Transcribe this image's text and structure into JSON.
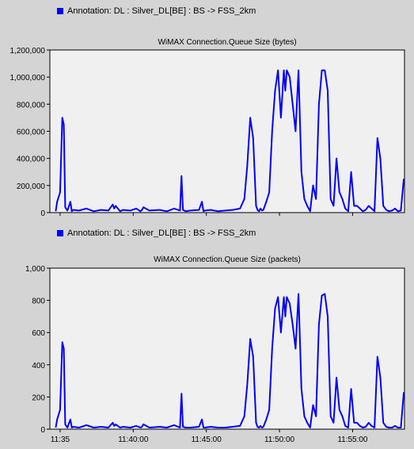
{
  "series_color": "#0000ff",
  "charts_meta": [
    {
      "legend": "Annotation: DL : Silver_DL[BE] : BS -> FSS_2km",
      "title": "WiMAX Connection.Queue Size (bytes)"
    },
    {
      "legend": "Annotation: DL : Silver_DL[BE] : BS -> FSS_2km",
      "title": "WiMAX Connection.Queue Size (packets)"
    }
  ],
  "chart_data": [
    {
      "type": "line",
      "title": "WiMAX Connection.Queue Size (bytes)",
      "xlabel": "",
      "ylabel": "",
      "xlim": [
        0,
        24.25
      ],
      "ylim": [
        0,
        1200000
      ],
      "yticks": [
        0,
        200000,
        400000,
        600000,
        800000,
        1000000,
        1200000
      ],
      "ytick_labels": [
        "0",
        "200,000",
        "400,000",
        "600,000",
        "800,000",
        "1,000,000",
        "1,200,000"
      ],
      "x_units": "minutes after 11:35:00",
      "series": [
        {
          "x": [
            0.4,
            0.5,
            0.7,
            0.85,
            0.95,
            1.05,
            1.2,
            1.4,
            1.5,
            1.6,
            2.0,
            2.5,
            3.0,
            3.5,
            4.0,
            4.3,
            4.4,
            4.5,
            4.8,
            5.0,
            5.5,
            5.9,
            6.2,
            6.3,
            6.4,
            6.8,
            7.5,
            8.0,
            8.5,
            8.9,
            9.0,
            9.1,
            9.3,
            9.6,
            10.2,
            10.4,
            10.5,
            10.6,
            11.0,
            11.5,
            12.0,
            12.5,
            13.0,
            13.3,
            13.5,
            13.7,
            13.9,
            14.1,
            14.2,
            14.3,
            14.4,
            14.5,
            14.6,
            14.8,
            15.0,
            15.2,
            15.4,
            15.6,
            15.8,
            16.0,
            16.1,
            16.2,
            16.4,
            16.6,
            16.8,
            17.0,
            17.2,
            17.4,
            17.6,
            17.8,
            18.0,
            18.2,
            18.4,
            18.6,
            18.8,
            19.0,
            19.2,
            19.4,
            19.6,
            19.8,
            20.0,
            20.2,
            20.4,
            20.6,
            20.8,
            21.0,
            21.2,
            21.4,
            21.6,
            21.8,
            22.0,
            22.2,
            22.4,
            22.6,
            22.8,
            23.0,
            23.2,
            23.4,
            23.6,
            23.8,
            24.0,
            24.2
          ],
          "y": [
            10000,
            80000,
            150000,
            700000,
            650000,
            40000,
            15000,
            80000,
            10000,
            20000,
            15000,
            30000,
            10000,
            20000,
            15000,
            60000,
            30000,
            50000,
            10000,
            20000,
            15000,
            30000,
            10000,
            20000,
            40000,
            15000,
            20000,
            10000,
            30000,
            15000,
            270000,
            20000,
            10000,
            15000,
            20000,
            80000,
            10000,
            15000,
            20000,
            10000,
            15000,
            20000,
            30000,
            100000,
            350000,
            700000,
            550000,
            50000,
            20000,
            10000,
            30000,
            15000,
            20000,
            80000,
            150000,
            600000,
            900000,
            1050000,
            700000,
            1050000,
            900000,
            1050000,
            1000000,
            800000,
            600000,
            1050000,
            300000,
            100000,
            50000,
            10000,
            200000,
            100000,
            800000,
            1050000,
            1050000,
            900000,
            100000,
            50000,
            400000,
            150000,
            100000,
            30000,
            10000,
            300000,
            50000,
            50000,
            30000,
            10000,
            20000,
            50000,
            30000,
            10000,
            550000,
            400000,
            50000,
            20000,
            10000,
            15000,
            30000,
            10000,
            15000,
            250000
          ]
        }
      ]
    },
    {
      "type": "line",
      "title": "WiMAX Connection.Queue Size (packets)",
      "xlabel": "",
      "ylabel": "",
      "xlim": [
        0,
        24.25
      ],
      "ylim": [
        0,
        1000
      ],
      "yticks": [
        0,
        200,
        400,
        600,
        800,
        1000
      ],
      "ytick_labels": [
        "0",
        "200",
        "400",
        "600",
        "800",
        "1,000"
      ],
      "x_units": "minutes after 11:35:00",
      "xticks": [
        0.7,
        5.7,
        10.7,
        15.7,
        20.7
      ],
      "xtick_labels": [
        "11:35",
        "11:40:00",
        "11:45:00",
        "11:50:00",
        "11:55:00"
      ],
      "series": [
        {
          "x": [
            0.4,
            0.5,
            0.7,
            0.85,
            0.95,
            1.05,
            1.2,
            1.4,
            1.5,
            1.6,
            2.0,
            2.5,
            3.0,
            3.5,
            4.0,
            4.3,
            4.4,
            4.5,
            4.8,
            5.0,
            5.5,
            5.9,
            6.2,
            6.3,
            6.4,
            6.8,
            7.5,
            8.0,
            8.5,
            8.9,
            9.0,
            9.1,
            9.3,
            9.6,
            10.2,
            10.4,
            10.5,
            10.6,
            11.0,
            11.5,
            12.0,
            12.5,
            13.0,
            13.3,
            13.5,
            13.7,
            13.9,
            14.1,
            14.2,
            14.3,
            14.4,
            14.5,
            14.6,
            14.8,
            15.0,
            15.2,
            15.4,
            15.6,
            15.8,
            16.0,
            16.1,
            16.2,
            16.4,
            16.6,
            16.8,
            17.0,
            17.2,
            17.4,
            17.6,
            17.8,
            18.0,
            18.2,
            18.4,
            18.6,
            18.8,
            19.0,
            19.2,
            19.4,
            19.6,
            19.8,
            20.0,
            20.2,
            20.4,
            20.6,
            20.8,
            21.0,
            21.2,
            21.4,
            21.6,
            21.8,
            22.0,
            22.2,
            22.4,
            22.6,
            22.8,
            23.0,
            23.2,
            23.4,
            23.6,
            23.8,
            24.0,
            24.2
          ],
          "y": [
            10,
            60,
            120,
            540,
            500,
            30,
            10,
            60,
            10,
            15,
            10,
            25,
            10,
            15,
            10,
            40,
            20,
            30,
            10,
            15,
            10,
            20,
            10,
            15,
            30,
            10,
            15,
            10,
            25,
            10,
            220,
            15,
            10,
            10,
            15,
            60,
            10,
            10,
            15,
            10,
            10,
            15,
            20,
            80,
            280,
            560,
            450,
            40,
            15,
            10,
            20,
            10,
            15,
            60,
            120,
            500,
            750,
            820,
            600,
            820,
            700,
            820,
            780,
            650,
            500,
            840,
            250,
            80,
            40,
            10,
            150,
            80,
            650,
            830,
            840,
            700,
            80,
            40,
            320,
            120,
            80,
            20,
            10,
            250,
            40,
            40,
            20,
            10,
            15,
            40,
            20,
            10,
            450,
            320,
            40,
            15,
            10,
            10,
            20,
            10,
            10,
            230
          ]
        }
      ]
    }
  ]
}
